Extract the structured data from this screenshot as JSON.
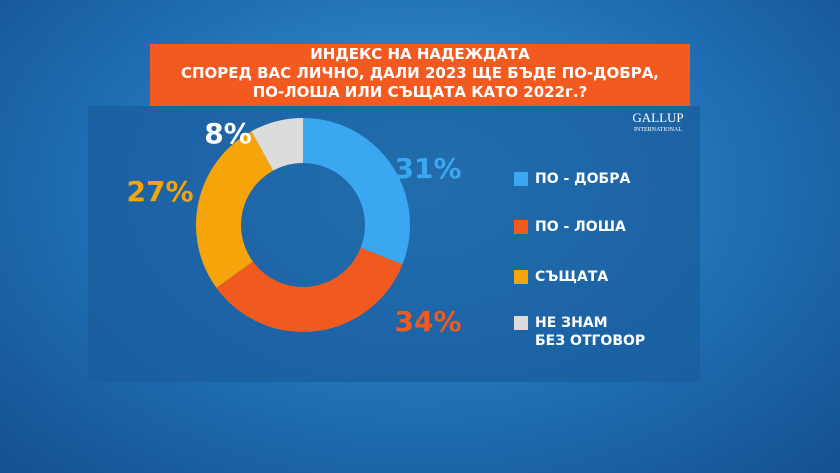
{
  "chart_data": {
    "type": "donut",
    "title": "ИНДЕКС НА НАДЕЖДАТА",
    "subtitle": [
      "СПОРЕД ВАС ЛИЧНО, ДАЛИ 2023 ЩЕ БЪДЕ ПО-ДОБРА,",
      "ПО-ЛОША ИЛИ СЪЩАТА КАТО 2022г.?"
    ],
    "categories": [
      "ПО - ДОБРА",
      "ПО - ЛОША",
      "СЪЩАТА",
      "НЕ ЗНАМ\nБЕЗ ОТГОВОР"
    ],
    "values": [
      31,
      34,
      27,
      8
    ],
    "value_labels": [
      "31%",
      "34%",
      "27%",
      "8%"
    ],
    "colors": [
      "#3aa7f0",
      "#f05a1e",
      "#f5a50a",
      "#dcdcdc"
    ],
    "label_colors": [
      "#3aa7f0",
      "#f05a1e",
      "#f5a50a",
      "#ffffff"
    ]
  },
  "logo": {
    "name": "GALLUP",
    "sub": "INTERNATIONAL"
  }
}
